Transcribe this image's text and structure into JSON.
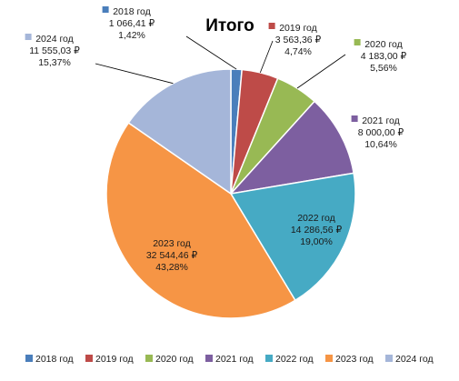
{
  "chart_data": {
    "type": "pie",
    "title": "Итого",
    "legend_position": "bottom",
    "slices": [
      {
        "label": "2018 год",
        "value": 1066.41,
        "value_text": "1 066,41 ₽",
        "percent_text": "1,42%",
        "color": "#4a7ebb"
      },
      {
        "label": "2019 год",
        "value": 3563.36,
        "value_text": "3 563,36 ₽",
        "percent_text": "4,74%",
        "color": "#be4b48"
      },
      {
        "label": "2020 год",
        "value": 4183.0,
        "value_text": "4 183,00 ₽",
        "percent_text": "5,56%",
        "color": "#98b954"
      },
      {
        "label": "2021 год",
        "value": 8000.0,
        "value_text": "8 000,00 ₽",
        "percent_text": "10,64%",
        "color": "#7d5fa0"
      },
      {
        "label": "2022 год",
        "value": 14286.56,
        "value_text": "14 286,56 ₽",
        "percent_text": "19,00%",
        "color": "#46aac4"
      },
      {
        "label": "2023 год",
        "value": 32544.46,
        "value_text": "32 544,46 ₽",
        "percent_text": "43,28%",
        "color": "#f69545"
      },
      {
        "label": "2024 год",
        "value": 11555.03,
        "value_text": "11 555,03 ₽",
        "percent_text": "15,37%",
        "color": "#a5b6d9"
      }
    ]
  }
}
